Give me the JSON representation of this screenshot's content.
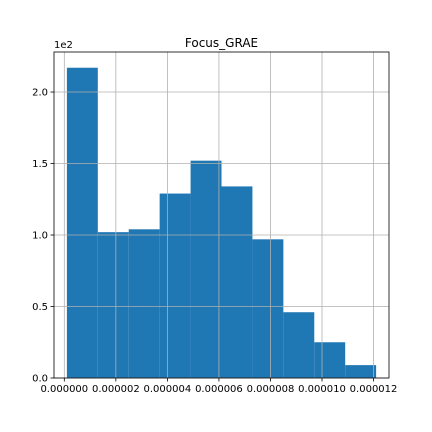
{
  "chart_data": {
    "type": "histogram",
    "title": "Focus_GRAE",
    "y_offset_label": "1e2",
    "bin_edges": [
      1e-07,
      1.3e-06,
      2.5e-06,
      3.7e-06,
      4.9e-06,
      6.1e-06,
      7.3e-06,
      8.5e-06,
      9.7e-06,
      1.09e-05,
      1.21e-05
    ],
    "counts": [
      217,
      102,
      104,
      129,
      152,
      134,
      97,
      46,
      25,
      9
    ],
    "xlim": [
      -4e-07,
      1.26e-05
    ],
    "ylim": [
      0,
      228
    ],
    "x_ticks": [
      0,
      2e-06,
      4e-06,
      6e-06,
      8e-06,
      1e-05,
      1.2e-05
    ],
    "x_tick_labels": [
      "0.000000",
      "0.000002",
      "0.000004",
      "0.000006",
      "0.000008",
      "0.000010",
      "0.000012"
    ],
    "y_ticks": [
      0,
      50,
      100,
      150,
      200
    ],
    "y_tick_labels": [
      "0.0",
      "0.5",
      "1.0",
      "1.5",
      "2.0"
    ],
    "grid": true,
    "bar_color": "#1f77b4"
  }
}
